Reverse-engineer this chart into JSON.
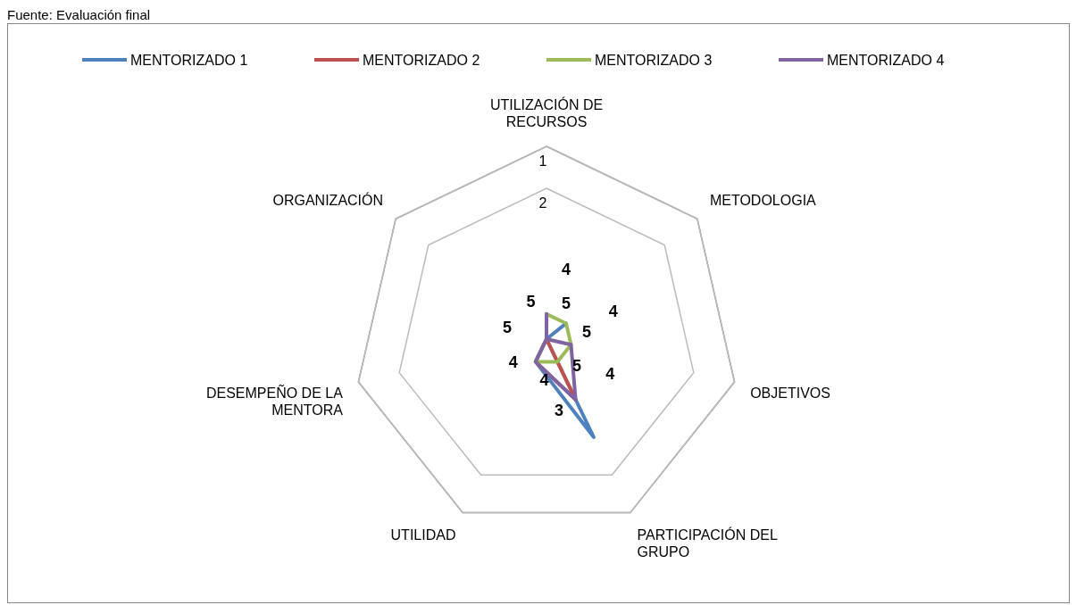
{
  "chart_data": {
    "type": "radar",
    "categories": [
      "UTILIZACIÓN DE RECURSOS",
      "METODOLOGIA",
      "OBJETIVOS",
      "PARTICIPACIÓN DEL GRUPO",
      "UTILIDAD",
      "DESEMPEÑO DE LA MENTORA",
      "ORGANIZACIÓN"
    ],
    "series": [
      {
        "name": "MENTORIZADO 1",
        "color": "#4f81bd",
        "values": [
          null,
          5,
          null,
          3,
          5,
          null,
          null
        ]
      },
      {
        "name": "MENTORIZADO 2",
        "color": "#c0504d",
        "values": [
          null,
          null,
          null,
          4,
          5,
          null,
          null
        ]
      },
      {
        "name": "MENTORIZADO 3",
        "color": "#9bbb59",
        "values": [
          5,
          5,
          5,
          5,
          5,
          null,
          null
        ]
      },
      {
        "name": "MENTORIZADO 4",
        "color": "#8064a2",
        "values": [
          5,
          null,
          5,
          4,
          5,
          null,
          null
        ]
      }
    ],
    "ylim": [
      5.6,
      1
    ],
    "yticks": [
      1,
      2
    ],
    "grid": true,
    "legend": "top",
    "marker": "none",
    "line_style": "solid",
    "annotations": [
      "Fuente: Evaluación final",
      {
        "text": "5",
        "x": "UTILIZACIÓN DE RECURSOS"
      },
      {
        "text": "4",
        "x": "UTILIZACIÓN DE RECURSOS"
      },
      {
        "text": "5",
        "x": "METODOLOGIA"
      },
      {
        "text": "4",
        "x": "METODOLOGIA"
      },
      {
        "text": "5",
        "x": "OBJETIVOS"
      },
      {
        "text": "4",
        "x": "OBJETIVOS"
      },
      {
        "text": "4",
        "x": "PARTICIPACIÓN DEL GRUPO"
      },
      {
        "text": "3",
        "x": "PARTICIPACIÓN DEL GRUPO"
      },
      {
        "text": "4",
        "x": "UTILIDAD"
      },
      {
        "text": "5",
        "x": "DESEMPEÑO DE LA MENTORA"
      },
      {
        "text": "5",
        "x": "ORGANIZACIÓN"
      }
    ]
  }
}
